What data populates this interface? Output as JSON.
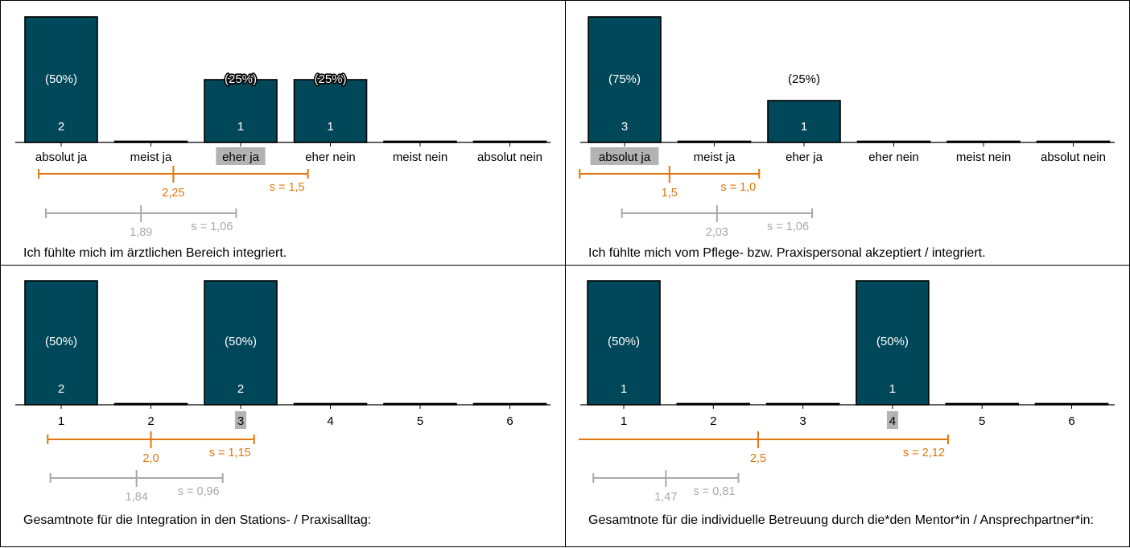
{
  "colors": {
    "bar": "#004759",
    "highlight": "#b3b3b3",
    "own_stats": "#e3760e",
    "comparison_stats": "#a9a9a9"
  },
  "chart_data": [
    {
      "type": "bar",
      "title": "Ich fühlte mich im ärztlichen Bereich integriert.",
      "categories": [
        "absolut ja",
        "meist ja",
        "eher ja",
        "eher nein",
        "meist nein",
        "absolut nein"
      ],
      "values": [
        2,
        0,
        1,
        1,
        0,
        0
      ],
      "percent_labels": [
        "(50%)",
        "",
        "(25%)",
        "(25%)",
        "",
        ""
      ],
      "highlighted_category": "eher ja",
      "ylim": [
        0,
        2
      ],
      "stats": [
        {
          "kind": "own",
          "mean": 2.25,
          "sd": 1.5,
          "mean_label": "2,25",
          "sd_label": "s = 1,5"
        },
        {
          "kind": "comparison",
          "mean": 1.89,
          "sd": 1.06,
          "mean_label": "1,89",
          "sd_label": "s = 1,06"
        }
      ]
    },
    {
      "type": "bar",
      "title": "Ich fühlte mich vom Pflege- bzw. Praxispersonal akzeptiert / integriert.",
      "categories": [
        "absolut ja",
        "meist ja",
        "eher ja",
        "eher nein",
        "meist nein",
        "absolut nein"
      ],
      "values": [
        3,
        0,
        1,
        0,
        0,
        0
      ],
      "percent_labels": [
        "(75%)",
        "",
        "(25%)",
        "",
        "",
        ""
      ],
      "highlighted_category": "absolut ja",
      "ylim": [
        0,
        3
      ],
      "stats": [
        {
          "kind": "own",
          "mean": 1.5,
          "sd": 1.0,
          "mean_label": "1,5",
          "sd_label": "s = 1,0"
        },
        {
          "kind": "comparison",
          "mean": 2.03,
          "sd": 1.06,
          "mean_label": "2,03",
          "sd_label": "s = 1,06"
        }
      ]
    },
    {
      "type": "bar",
      "title": "Gesamtnote für die Integration in den Stations- / Praxisalltag:",
      "categories": [
        "1",
        "2",
        "3",
        "4",
        "5",
        "6"
      ],
      "values": [
        2,
        0,
        2,
        0,
        0,
        0
      ],
      "percent_labels": [
        "(50%)",
        "",
        "(50%)",
        "",
        "",
        ""
      ],
      "highlighted_category": "3",
      "ylim": [
        0,
        2
      ],
      "stats": [
        {
          "kind": "own",
          "mean": 2.0,
          "sd": 1.15,
          "mean_label": "2,0",
          "sd_label": "s = 1,15"
        },
        {
          "kind": "comparison",
          "mean": 1.84,
          "sd": 0.96,
          "mean_label": "1,84",
          "sd_label": "s = 0,96"
        }
      ]
    },
    {
      "type": "bar",
      "title": "Gesamtnote für die individuelle Betreuung durch die*den Mentor*in / Ansprechpartner*in:",
      "categories": [
        "1",
        "2",
        "3",
        "4",
        "5",
        "6"
      ],
      "values": [
        1,
        0,
        0,
        1,
        0,
        0
      ],
      "percent_labels": [
        "(50%)",
        "",
        "",
        "(50%)",
        "",
        ""
      ],
      "highlighted_category": "4",
      "ylim": [
        0,
        1
      ],
      "stats": [
        {
          "kind": "own",
          "mean": 2.5,
          "sd": 2.12,
          "mean_label": "2,5",
          "sd_label": "s = 2,12"
        },
        {
          "kind": "comparison",
          "mean": 1.47,
          "sd": 0.81,
          "mean_label": "1,47",
          "sd_label": "s = 0,81"
        }
      ]
    }
  ]
}
